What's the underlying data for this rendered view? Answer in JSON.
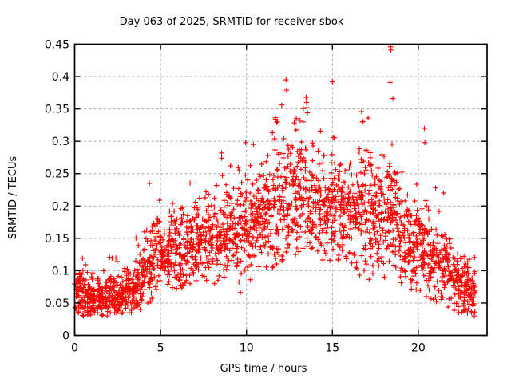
{
  "chart_data": {
    "type": "scatter",
    "title": "Day 063 of 2025, SRMTID for receiver sbok",
    "xlabel": "GPS time / hours",
    "ylabel": "SRMTID / TECUs",
    "xlim": [
      0,
      24
    ],
    "ylim": [
      0,
      0.45
    ],
    "xticks": [
      0,
      5,
      10,
      15,
      20
    ],
    "xtick_labels": [
      "0",
      "5",
      "10",
      "15",
      "20"
    ],
    "yticks": [
      0,
      0.05,
      0.1,
      0.15,
      0.2,
      0.25,
      0.3,
      0.35,
      0.4,
      0.45
    ],
    "ytick_labels": [
      "0",
      "0.05",
      "0.1",
      "0.15",
      "0.2",
      "0.25",
      "0.3",
      "0.35",
      "0.4",
      "0.45"
    ],
    "grid": "dashed",
    "grid_color": "#a8a8a8",
    "axis_color": "#000000",
    "marker": "plus",
    "marker_color": "#ff0000",
    "background_color": "#ffffff",
    "x_data_range": [
      0.0,
      23.3
    ],
    "seed": 2025063,
    "outlier_points": [
      [
        4.35,
        0.235
      ],
      [
        8.55,
        0.282
      ],
      [
        9.95,
        0.298
      ],
      [
        10.4,
        0.295
      ],
      [
        11.8,
        0.33
      ],
      [
        12.05,
        0.356
      ],
      [
        12.3,
        0.395
      ],
      [
        12.33,
        0.379
      ],
      [
        12.9,
        0.335
      ],
      [
        13.3,
        0.33
      ],
      [
        13.47,
        0.368
      ],
      [
        13.52,
        0.352
      ],
      [
        13.55,
        0.344
      ],
      [
        15.0,
        0.392
      ],
      [
        15.04,
        0.306
      ],
      [
        16.7,
        0.346
      ],
      [
        16.74,
        0.33
      ],
      [
        17.08,
        0.336
      ],
      [
        18.38,
        0.446
      ],
      [
        18.4,
        0.441
      ],
      [
        18.36,
        0.391
      ],
      [
        18.52,
        0.366
      ],
      [
        20.35,
        0.32
      ],
      [
        20.38,
        0.298
      ]
    ],
    "density_profile": {
      "description": "per-bin envelope of the dense scatter; columns describe each bin entry",
      "columns": [
        "start_hour",
        "width_hours",
        "count",
        "min",
        "mode",
        "max"
      ],
      "bins": [
        [
          0.0,
          0.5,
          55,
          0.03,
          0.065,
          0.13
        ],
        [
          0.5,
          0.5,
          55,
          0.03,
          0.058,
          0.115
        ],
        [
          1.0,
          0.5,
          55,
          0.035,
          0.06,
          0.12
        ],
        [
          1.5,
          0.5,
          55,
          0.03,
          0.055,
          0.1
        ],
        [
          2.0,
          0.5,
          55,
          0.035,
          0.065,
          0.135
        ],
        [
          2.5,
          0.5,
          55,
          0.03,
          0.06,
          0.105
        ],
        [
          3.0,
          0.5,
          50,
          0.035,
          0.068,
          0.125
        ],
        [
          3.5,
          0.5,
          50,
          0.04,
          0.08,
          0.16
        ],
        [
          4.0,
          0.5,
          50,
          0.05,
          0.105,
          0.235
        ],
        [
          4.5,
          0.5,
          50,
          0.06,
          0.13,
          0.22
        ],
        [
          5.0,
          0.5,
          50,
          0.07,
          0.12,
          0.19
        ],
        [
          5.5,
          0.5,
          50,
          0.07,
          0.13,
          0.25
        ],
        [
          6.0,
          0.5,
          50,
          0.055,
          0.125,
          0.22
        ],
        [
          6.5,
          0.5,
          50,
          0.08,
          0.14,
          0.25
        ],
        [
          7.0,
          0.5,
          50,
          0.06,
          0.14,
          0.23
        ],
        [
          7.5,
          0.5,
          50,
          0.08,
          0.15,
          0.26
        ],
        [
          8.0,
          0.5,
          50,
          0.08,
          0.15,
          0.28
        ],
        [
          8.5,
          0.5,
          50,
          0.09,
          0.16,
          0.29
        ],
        [
          9.0,
          0.5,
          50,
          0.08,
          0.16,
          0.27
        ],
        [
          9.5,
          0.5,
          50,
          0.06,
          0.165,
          0.3
        ],
        [
          10.0,
          0.5,
          50,
          0.07,
          0.17,
          0.3
        ],
        [
          10.5,
          0.5,
          50,
          0.08,
          0.18,
          0.285
        ],
        [
          11.0,
          0.5,
          50,
          0.09,
          0.19,
          0.31
        ],
        [
          11.5,
          0.5,
          50,
          0.1,
          0.2,
          0.37
        ],
        [
          12.0,
          0.5,
          50,
          0.1,
          0.21,
          0.36
        ],
        [
          12.5,
          0.5,
          50,
          0.11,
          0.21,
          0.33
        ],
        [
          13.0,
          0.5,
          50,
          0.115,
          0.22,
          0.37
        ],
        [
          13.5,
          0.5,
          50,
          0.115,
          0.21,
          0.35
        ],
        [
          14.0,
          0.5,
          50,
          0.1,
          0.2,
          0.32
        ],
        [
          14.5,
          0.5,
          50,
          0.09,
          0.195,
          0.33
        ],
        [
          15.0,
          0.5,
          50,
          0.085,
          0.19,
          0.31
        ],
        [
          15.5,
          0.5,
          50,
          0.08,
          0.185,
          0.3
        ],
        [
          16.0,
          0.5,
          50,
          0.07,
          0.18,
          0.285
        ],
        [
          16.5,
          0.5,
          50,
          0.09,
          0.19,
          0.345
        ],
        [
          17.0,
          0.5,
          50,
          0.085,
          0.185,
          0.33
        ],
        [
          17.5,
          0.5,
          50,
          0.075,
          0.175,
          0.3
        ],
        [
          18.0,
          0.5,
          50,
          0.09,
          0.18,
          0.34
        ],
        [
          18.5,
          0.5,
          50,
          0.08,
          0.17,
          0.31
        ],
        [
          19.0,
          0.5,
          48,
          0.07,
          0.15,
          0.26
        ],
        [
          19.5,
          0.5,
          48,
          0.06,
          0.14,
          0.24
        ],
        [
          20.0,
          0.5,
          48,
          0.06,
          0.14,
          0.32
        ],
        [
          20.5,
          0.5,
          48,
          0.055,
          0.125,
          0.25
        ],
        [
          21.0,
          0.5,
          46,
          0.045,
          0.11,
          0.23
        ],
        [
          21.5,
          0.5,
          46,
          0.04,
          0.1,
          0.18
        ],
        [
          22.0,
          0.5,
          50,
          0.035,
          0.085,
          0.165
        ],
        [
          22.5,
          0.5,
          60,
          0.03,
          0.075,
          0.15
        ],
        [
          23.0,
          0.3,
          32,
          0.03,
          0.065,
          0.13
        ]
      ]
    }
  }
}
